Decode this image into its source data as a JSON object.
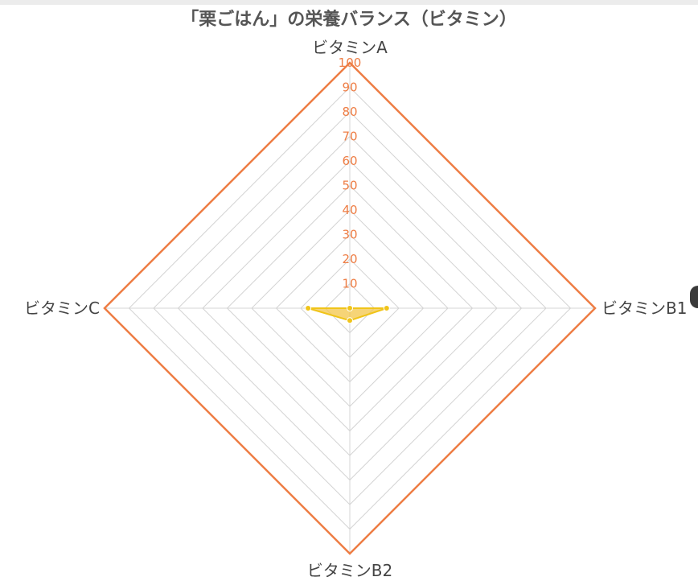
{
  "colors": {
    "outer": "#ee7d44",
    "grid": "#d4d4d4",
    "fill": "#f3c64a",
    "fill_alpha": 0.75,
    "point": "#f0c419",
    "tick": "#ee7d44"
  },
  "chart_data": {
    "type": "radar",
    "title": "「栗ごはん」の栄養バランス（ビタミン）",
    "axes": [
      "ビタミンA",
      "ビタミンB1",
      "ビタミンB2",
      "ビタミンC"
    ],
    "rmin": 0,
    "rmax": 100,
    "ticks": [
      10,
      20,
      30,
      40,
      50,
      60,
      70,
      80,
      90,
      100
    ],
    "grid": true,
    "series": [
      {
        "values": [
          0,
          15,
          5,
          17
        ]
      }
    ]
  }
}
